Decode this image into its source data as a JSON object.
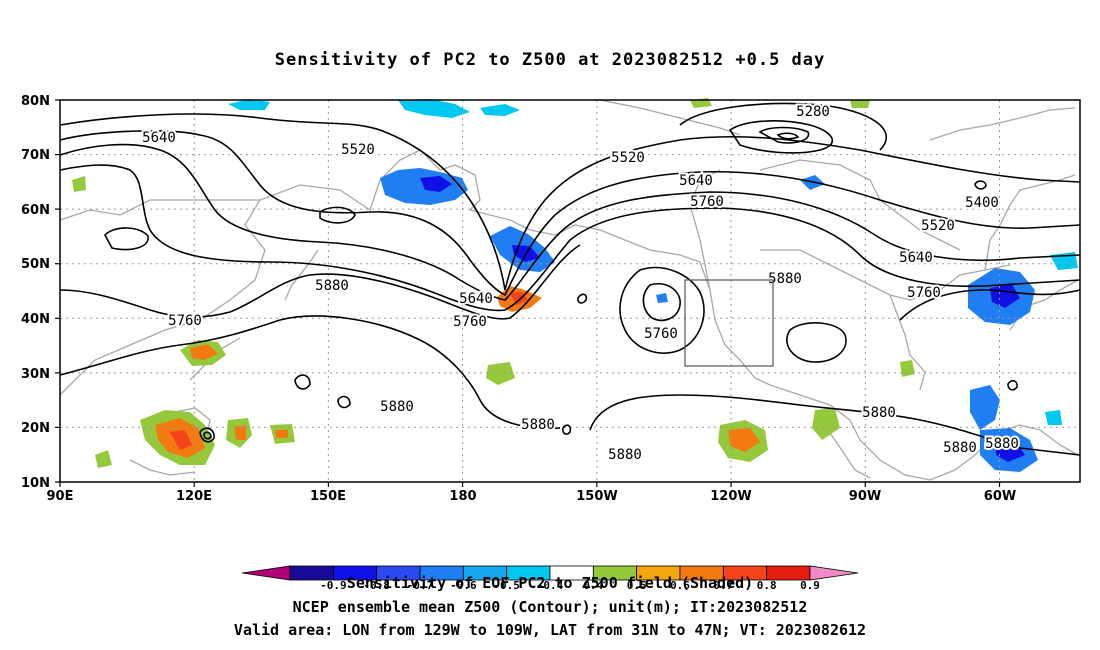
{
  "title": "Sensitivity of PC2 to Z500 at 2023082512 +0.5 day",
  "axes": {
    "lat_ticks": [
      "80N",
      "70N",
      "60N",
      "50N",
      "40N",
      "30N",
      "20N",
      "10N"
    ],
    "lon_ticks": [
      "90E",
      "120E",
      "150E",
      "180",
      "150W",
      "120W",
      "90W",
      "60W"
    ]
  },
  "contour_labels": [
    "5280",
    "5400",
    "5520",
    "5520",
    "5520",
    "5640",
    "5640",
    "5640",
    "5640",
    "5760",
    "5760",
    "5760",
    "5760",
    "5760",
    "5880",
    "5880",
    "5880",
    "5880",
    "5880",
    "5880",
    "5880",
    "5880"
  ],
  "colorbar": {
    "labels": [
      "-0.9",
      "-0.8",
      "-0.7",
      "-0.6",
      "-0.5",
      "-0.4",
      "0.4",
      "0.5",
      "0.6",
      "0.7",
      "0.8",
      "0.9"
    ],
    "colors": [
      "#b0007a",
      "#1a0a9a",
      "#1010e6",
      "#2b4bf0",
      "#1f7ff2",
      "#16a7ef",
      "#00c8f0",
      "#ffffff",
      "#95c93c",
      "#f4a60f",
      "#f47a0f",
      "#f2431a",
      "#e61c10",
      "#f08ac8"
    ]
  },
  "footer": {
    "line1": "Sensitivity of EOF PC2 to Z500 field (Shaded)",
    "line2": "NCEP ensemble mean Z500 (Contour); unit(m); IT:2023082512",
    "line3": "Valid area: LON from 129W to 109W, LAT from 31N to 47N; VT: 2023082612"
  }
}
